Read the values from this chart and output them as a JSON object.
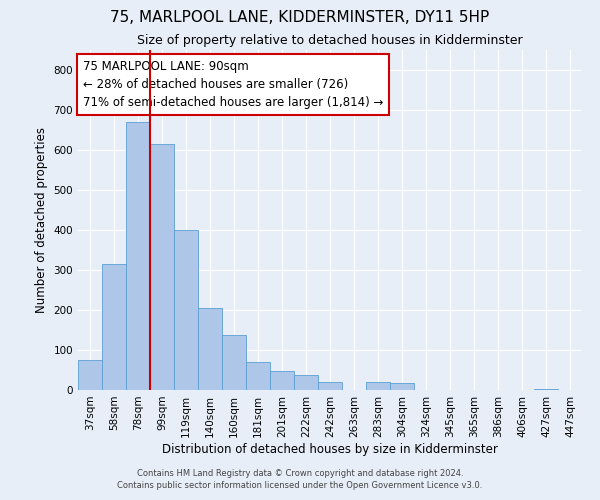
{
  "title": "75, MARLPOOL LANE, KIDDERMINSTER, DY11 5HP",
  "subtitle": "Size of property relative to detached houses in Kidderminster",
  "xlabel": "Distribution of detached houses by size in Kidderminster",
  "ylabel": "Number of detached properties",
  "categories": [
    "37sqm",
    "58sqm",
    "78sqm",
    "99sqm",
    "119sqm",
    "140sqm",
    "160sqm",
    "181sqm",
    "201sqm",
    "222sqm",
    "242sqm",
    "263sqm",
    "283sqm",
    "304sqm",
    "324sqm",
    "345sqm",
    "365sqm",
    "386sqm",
    "406sqm",
    "427sqm",
    "447sqm"
  ],
  "values": [
    75,
    315,
    670,
    615,
    400,
    205,
    138,
    70,
    48,
    38,
    20,
    0,
    20,
    17,
    0,
    0,
    0,
    0,
    0,
    3,
    0
  ],
  "bar_color": "#aec6e8",
  "bar_edge_color": "#5a9fd4",
  "marker_color": "#cc0000",
  "annotation_line1": "75 MARLPOOL LANE: 90sqm",
  "annotation_line2": "← 28% of detached houses are smaller (726)",
  "annotation_line3": "71% of semi-detached houses are larger (1,814) →",
  "annotation_box_color": "#ffffff",
  "annotation_box_edge": "#cc0000",
  "ylim": [
    0,
    850
  ],
  "yticks": [
    0,
    100,
    200,
    300,
    400,
    500,
    600,
    700,
    800
  ],
  "footer1": "Contains HM Land Registry data © Crown copyright and database right 2024.",
  "footer2": "Contains public sector information licensed under the Open Government Licence v3.0.",
  "bg_color": "#e8eef8",
  "title_fontsize": 11,
  "subtitle_fontsize": 9,
  "axis_label_fontsize": 8.5,
  "tick_fontsize": 7.5,
  "annotation_fontsize": 8.5,
  "footer_fontsize": 6
}
